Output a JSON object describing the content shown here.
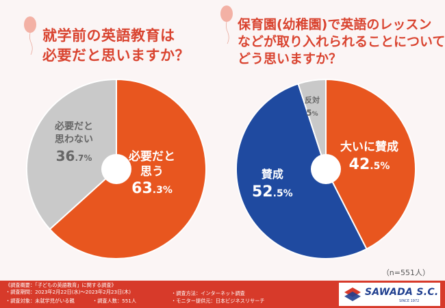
{
  "chart_data": [
    {
      "type": "pie",
      "title": "就学前の英語教育は必要だと思いますか？",
      "title_lines": [
        "就学前の英語教育は",
        "必要だと思いますか？"
      ],
      "slices": [
        {
          "label_lines": [
            "必要だと",
            "思う"
          ],
          "value_main": "63",
          "value_sub": ".3%",
          "value": 63.3,
          "color": "#e8561f"
        },
        {
          "label_lines": [
            "必要だと",
            "思わない"
          ],
          "value_main": "36",
          "value_sub": ".7%",
          "value": 36.7,
          "color": "#c9c9c9"
        }
      ]
    },
    {
      "type": "pie",
      "title": "保育園(幼稚園)で英語のレッスンなどが取り入れられることについてどう思いますか？",
      "title_lines": [
        "保育園(幼稚園)で英語のレッスン",
        "などが取り入れられることについて",
        "どう思いますか？"
      ],
      "slices": [
        {
          "label_lines": [
            "大いに賛成"
          ],
          "value_main": "42",
          "value_sub": ".5%",
          "value": 42.5,
          "color": "#e8561f"
        },
        {
          "label_lines": [
            "賛成"
          ],
          "value_main": "52",
          "value_sub": ".5%",
          "value": 52.5,
          "color": "#1f4aa0"
        },
        {
          "label_lines": [
            "反対"
          ],
          "value_main": "5",
          "value_sub": "%",
          "value": 5,
          "color": "#c9c9c9"
        }
      ]
    }
  ],
  "sample_note": "（n=551人）",
  "footer": {
    "lines": [
      "《調査概要：「子どもの英語教育」に関する調査》",
      "・調査期間：2023年2月22日(水)～2023年2月23日(木)",
      "・調査対象：未就学児がいる親",
      "・調査人数：551人",
      "・調査方法：インターネット調査",
      "・モニター提供元：日本ビジネスリサーチ"
    ]
  },
  "logo": {
    "name": "SAWADA S.C.",
    "tagline": "SINCE 1972"
  },
  "colors": {
    "accent": "#d9432f",
    "orange": "#e8561f",
    "blue": "#1f4aa0",
    "gray": "#c9c9c9",
    "footer": "#d73a2a"
  }
}
